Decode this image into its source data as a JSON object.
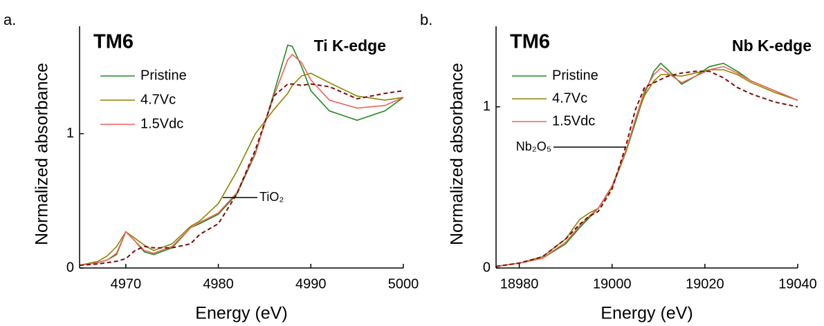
{
  "chart_data": [
    {
      "type": "line",
      "panel_label": "a.",
      "sample": "TM6",
      "title": "Ti K-edge",
      "xlabel": "Energy (eV)",
      "ylabel": "Normalized absorbance",
      "x": [
        4965,
        4967,
        4968,
        4969,
        4970,
        4971,
        4972,
        4973,
        4975,
        4977,
        4978,
        4980,
        4982,
        4984,
        4986,
        4987.5,
        4988,
        4989,
        4990,
        4992,
        4995,
        4998,
        5000
      ],
      "series": [
        {
          "name": "Pristine",
          "color": "#1e8c1e",
          "dashed": false,
          "values": [
            0.02,
            0.04,
            0.06,
            0.1,
            0.27,
            0.2,
            0.12,
            0.1,
            0.15,
            0.3,
            0.33,
            0.4,
            0.55,
            0.85,
            1.3,
            1.66,
            1.65,
            1.5,
            1.32,
            1.17,
            1.1,
            1.17,
            1.27
          ]
        },
        {
          "name": "4.7Vc",
          "color": "#8c8400",
          "dashed": false,
          "values": [
            0.02,
            0.05,
            0.09,
            0.16,
            0.27,
            0.22,
            0.17,
            0.13,
            0.18,
            0.31,
            0.35,
            0.48,
            0.72,
            1.0,
            1.18,
            1.3,
            1.36,
            1.43,
            1.45,
            1.38,
            1.28,
            1.25,
            1.27
          ]
        },
        {
          "name": "1.5Vdc",
          "color": "#f0605a",
          "dashed": false,
          "values": [
            0.02,
            0.04,
            0.06,
            0.11,
            0.27,
            0.2,
            0.13,
            0.11,
            0.16,
            0.3,
            0.34,
            0.41,
            0.56,
            0.86,
            1.28,
            1.55,
            1.59,
            1.53,
            1.4,
            1.25,
            1.19,
            1.21,
            1.27
          ]
        },
        {
          "name": "TiO₂",
          "color": "#7a0a0a",
          "dashed": true,
          "values": [
            0.02,
            0.03,
            0.04,
            0.05,
            0.07,
            0.13,
            0.16,
            0.15,
            0.15,
            0.18,
            0.25,
            0.33,
            0.55,
            0.88,
            1.28,
            1.37,
            1.37,
            1.36,
            1.37,
            1.35,
            1.26,
            1.3,
            1.32
          ]
        }
      ],
      "xlim": [
        4965,
        5000
      ],
      "ylim": [
        0,
        1.8
      ],
      "xticks": [
        4970,
        4980,
        4990,
        5000
      ],
      "yticks": [
        0,
        1
      ]
    },
    {
      "type": "line",
      "panel_label": "b.",
      "sample": "TM6",
      "title": "Nb K-edge",
      "xlabel": "Energy (eV)",
      "ylabel": "Normalized absorbance",
      "x": [
        18975,
        18980,
        18985,
        18990,
        18993,
        18995,
        18997,
        19000,
        19003,
        19005,
        19007,
        19009,
        19010.5,
        19012,
        19015,
        19018,
        19021,
        19024,
        19027,
        19030,
        19035,
        19040
      ],
      "series": [
        {
          "name": "Pristine",
          "color": "#1e8c1e",
          "dashed": false,
          "values": [
            0.01,
            0.03,
            0.06,
            0.15,
            0.25,
            0.31,
            0.37,
            0.5,
            0.72,
            0.9,
            1.08,
            1.22,
            1.27,
            1.23,
            1.14,
            1.19,
            1.25,
            1.27,
            1.22,
            1.16,
            1.1,
            1.04
          ]
        },
        {
          "name": "4.7Vc",
          "color": "#8c8400",
          "dashed": false,
          "values": [
            0.01,
            0.03,
            0.07,
            0.18,
            0.3,
            0.34,
            0.37,
            0.5,
            0.72,
            0.92,
            1.07,
            1.16,
            1.2,
            1.2,
            1.19,
            1.21,
            1.23,
            1.23,
            1.2,
            1.15,
            1.09,
            1.04
          ]
        },
        {
          "name": "1.5Vdc",
          "color": "#f0605a",
          "dashed": false,
          "values": [
            0.01,
            0.03,
            0.06,
            0.16,
            0.26,
            0.32,
            0.37,
            0.51,
            0.73,
            0.92,
            1.1,
            1.2,
            1.24,
            1.21,
            1.15,
            1.19,
            1.23,
            1.25,
            1.21,
            1.16,
            1.1,
            1.04
          ]
        },
        {
          "name": "Nb₂O₅",
          "color": "#7a0a0a",
          "dashed": true,
          "values": [
            0.01,
            0.03,
            0.07,
            0.18,
            0.27,
            0.32,
            0.35,
            0.49,
            0.76,
            0.98,
            1.12,
            1.15,
            1.17,
            1.19,
            1.21,
            1.22,
            1.22,
            1.18,
            1.12,
            1.08,
            1.03,
            1.0
          ]
        }
      ],
      "xlim": [
        18975,
        19040
      ],
      "ylim": [
        0,
        1.5
      ],
      "xticks": [
        18980,
        19000,
        19020,
        19040
      ],
      "yticks": [
        0,
        1
      ]
    }
  ]
}
